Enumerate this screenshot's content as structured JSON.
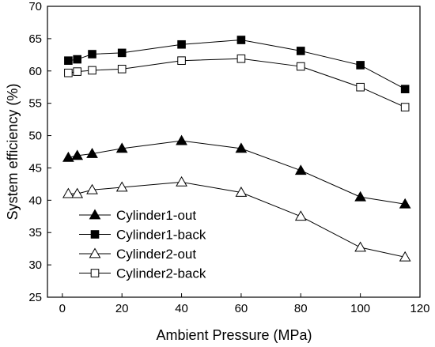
{
  "chart_data": {
    "type": "line",
    "title": "",
    "xlabel": "Ambient Pressure (MPa)",
    "ylabel": "System efficiency (%)",
    "xlim": [
      -5,
      120
    ],
    "ylim": [
      25,
      70
    ],
    "xticks": [
      0,
      20,
      40,
      60,
      80,
      100,
      120
    ],
    "yticks": [
      25,
      30,
      35,
      40,
      45,
      50,
      55,
      60,
      65,
      70
    ],
    "grid": false,
    "legend_position": "bottom-left",
    "series": [
      {
        "name": "Cylinder1-out",
        "marker": "triangle-filled",
        "x": [
          2,
          5,
          10,
          20,
          40,
          60,
          80,
          100,
          115
        ],
        "y": [
          46.6,
          46.9,
          47.2,
          48.0,
          49.2,
          48.0,
          44.6,
          40.5,
          39.4
        ]
      },
      {
        "name": "Cylinder1-back",
        "marker": "square-filled",
        "x": [
          2,
          5,
          10,
          20,
          40,
          60,
          80,
          100,
          115
        ],
        "y": [
          61.6,
          61.8,
          62.6,
          62.8,
          64.1,
          64.8,
          63.1,
          60.9,
          57.2
        ]
      },
      {
        "name": "Cylinder2-out",
        "marker": "triangle-open",
        "x": [
          2,
          5,
          10,
          20,
          40,
          60,
          80,
          100,
          115
        ],
        "y": [
          41.0,
          41.0,
          41.6,
          42.0,
          42.8,
          41.2,
          37.5,
          32.7,
          31.2
        ]
      },
      {
        "name": "Cylinder2-back",
        "marker": "square-open",
        "x": [
          2,
          5,
          10,
          20,
          40,
          60,
          80,
          100,
          115
        ],
        "y": [
          59.7,
          59.9,
          60.1,
          60.3,
          61.6,
          61.9,
          60.7,
          57.5,
          54.4
        ]
      }
    ]
  }
}
